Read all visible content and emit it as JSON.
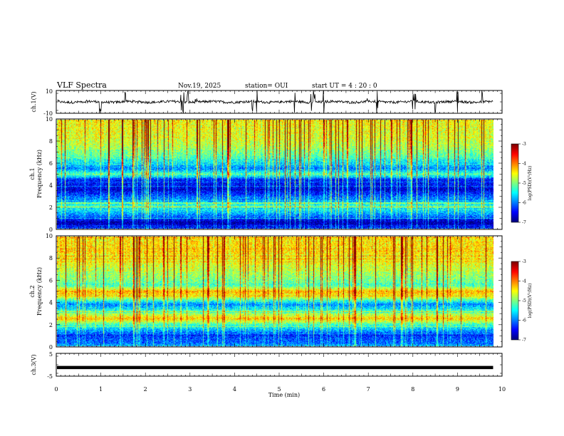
{
  "header": {
    "title": "VLF Spectra",
    "date": "Nov.19, 2025",
    "station": "station= OUI",
    "start": "start  UT =   4 : 20 : 0"
  },
  "colors": {
    "colormap": [
      "#00007f",
      "#0000ff",
      "#0080ff",
      "#00ffff",
      "#80ff80",
      "#ffff00",
      "#ff8000",
      "#ff0000",
      "#7f0000"
    ],
    "trace": "#000000",
    "axes": "#000000"
  },
  "chart_data": [
    {
      "type": "line",
      "id": "ch1-waveform",
      "ylabel": "ch.1(V)",
      "ylim": [
        -10,
        10
      ],
      "yticks": [
        "10",
        "-10"
      ],
      "x": [
        0,
        10
      ],
      "baseline_value": 0,
      "spike_times_min": [
        0.98,
        1.0,
        1.55,
        2.8,
        2.85,
        2.95,
        4.4,
        4.5,
        5.35,
        5.72,
        5.78,
        5.8,
        6.0,
        7.2,
        8.0,
        8.05,
        8.5,
        9.0,
        9.55
      ]
    },
    {
      "type": "heatmap",
      "id": "ch1-spectrogram",
      "ylabel": "ch.1\nFrequency (kHz)",
      "ylabel_lines": [
        "ch.1",
        "Frequency (kHz)"
      ],
      "ylim": [
        0,
        10
      ],
      "yticks": [
        "0",
        "2",
        "4",
        "6",
        "8",
        "10"
      ],
      "xlim": [
        0,
        9.8
      ],
      "z_label": "log(PSD)(V²/Hz)",
      "zlim": [
        -7,
        -3
      ],
      "colorbar_ticks": [
        "-3",
        "-4",
        "-5",
        "-6",
        "-7"
      ],
      "band_profile_khz": [
        [
          0,
          -6.3
        ],
        [
          0.5,
          -6.9
        ],
        [
          1.2,
          -6.0
        ],
        [
          2.0,
          -5.3
        ],
        [
          2.5,
          -5.7
        ],
        [
          3.5,
          -6.6
        ],
        [
          4.5,
          -6.4
        ],
        [
          5.0,
          -5.1
        ],
        [
          5.5,
          -6.0
        ],
        [
          6.5,
          -5.2
        ],
        [
          7.5,
          -4.8
        ],
        [
          8.5,
          -4.6
        ],
        [
          10,
          -4.5
        ]
      ]
    },
    {
      "type": "heatmap",
      "id": "ch2-spectrogram",
      "ylabel": "ch.2\nFrequency (kHz)",
      "ylabel_lines": [
        "ch.2",
        "Frequency (kHz)"
      ],
      "ylim": [
        0,
        10
      ],
      "yticks": [
        "0",
        "2",
        "4",
        "6",
        "8",
        "10"
      ],
      "xlim": [
        0,
        9.8
      ],
      "z_label": "log(PSD)(V²/Hz)",
      "zlim": [
        -7,
        -3
      ],
      "colorbar_ticks": [
        "-3",
        "-4",
        "-5",
        "-6",
        "-7"
      ],
      "band_profile_khz": [
        [
          0,
          -6.0
        ],
        [
          1.0,
          -6.3
        ],
        [
          2.0,
          -5.2
        ],
        [
          2.5,
          -4.3
        ],
        [
          3.0,
          -5.0
        ],
        [
          3.8,
          -6.0
        ],
        [
          4.5,
          -4.6
        ],
        [
          5.0,
          -4.2
        ],
        [
          5.5,
          -5.2
        ],
        [
          6.5,
          -4.9
        ],
        [
          7.5,
          -4.6
        ],
        [
          8.5,
          -4.4
        ],
        [
          10,
          -4.4
        ]
      ]
    },
    {
      "type": "line",
      "id": "ch3-waveform",
      "ylabel": "ch.3(V)",
      "ylim": [
        -5,
        5
      ],
      "yticks": [
        "5",
        "-5"
      ],
      "x": [
        0,
        9.8
      ],
      "constant_value": -1.2
    }
  ],
  "xaxis": {
    "label": "Time  (min)",
    "ticks": [
      "0",
      "1",
      "2",
      "3",
      "4",
      "5",
      "6",
      "7",
      "8",
      "9",
      "10"
    ],
    "range": [
      0,
      10
    ]
  }
}
